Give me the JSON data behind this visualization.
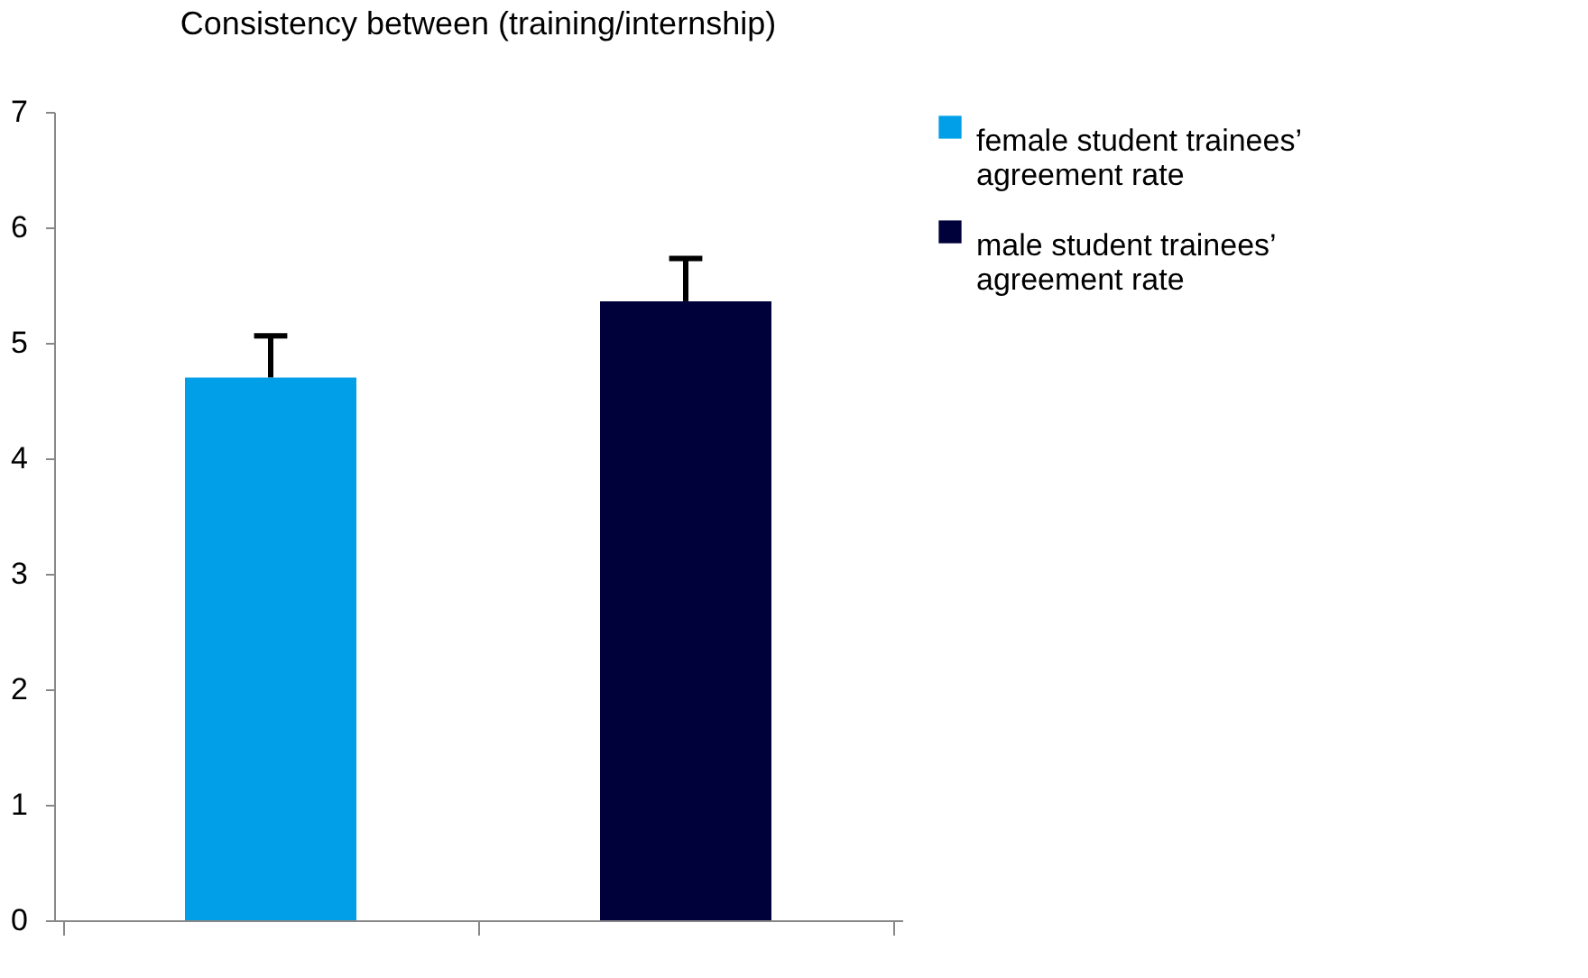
{
  "chart_data": {
    "type": "bar",
    "title": "Consistency between (training/internship)",
    "categories": [
      null,
      null
    ],
    "series": [
      {
        "name": "female student trainees’ agreement rate",
        "color": "#009fe8",
        "values": [
          4.7,
          null
        ],
        "errors": [
          [
            4.7,
            5.06
          ],
          null
        ]
      },
      {
        "name": "male student trainees’ agreement rate",
        "color": "#00003a",
        "values": [
          null,
          5.36
        ],
        "errors": [
          null,
          [
            5.36,
            5.73
          ]
        ]
      }
    ],
    "ylim": [
      0,
      7
    ],
    "yticks": [
      0,
      1,
      2,
      3,
      4,
      5,
      6,
      7
    ],
    "grid": false,
    "legend": "right"
  }
}
